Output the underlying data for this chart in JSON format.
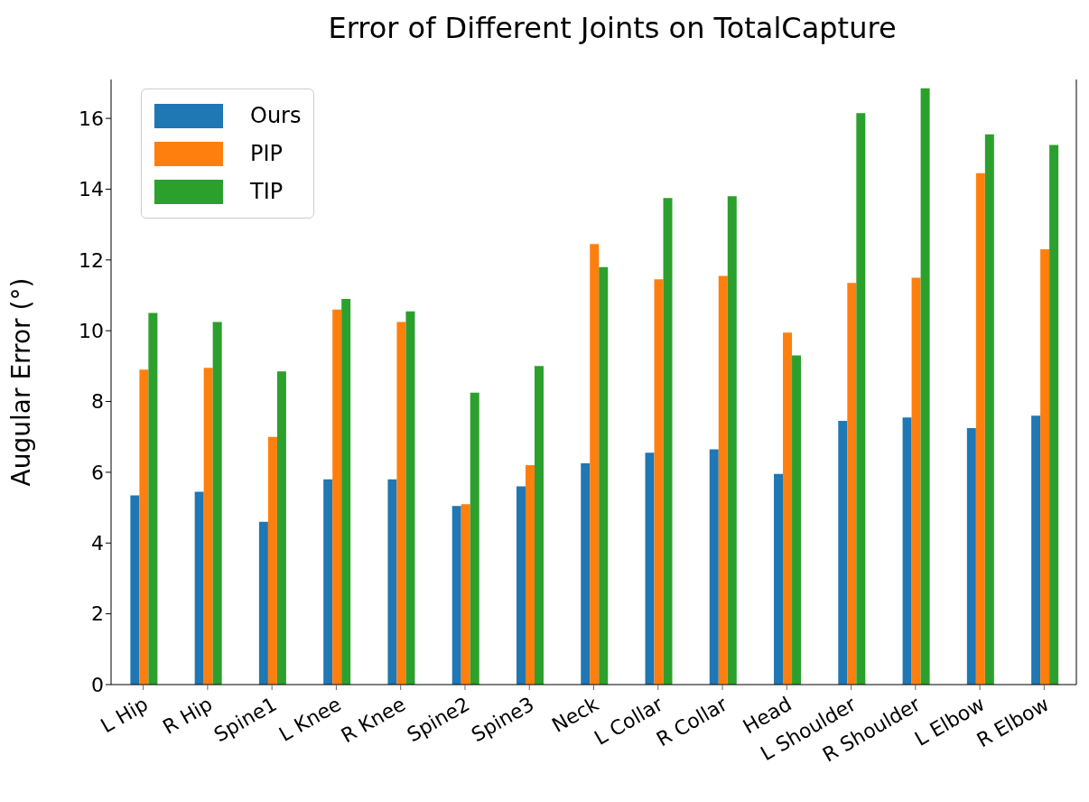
{
  "chart_data": {
    "type": "bar",
    "title": "Error of Different Joints on TotalCapture",
    "ylabel": "Augular Error  (°)",
    "categories": [
      "L Hip",
      "R Hip",
      "Spine1",
      "L Knee",
      "R Knee",
      "Spine2",
      "Spine3",
      "Neck",
      "L Collar",
      "R Collar",
      "Head",
      "L Shoulder",
      "R Shoulder",
      "L Elbow",
      "R Elbow"
    ],
    "series": [
      {
        "name": "Ours",
        "color": "#1f77b4",
        "values": [
          5.35,
          5.45,
          4.6,
          5.8,
          5.8,
          5.05,
          5.6,
          6.25,
          6.55,
          6.65,
          5.95,
          7.45,
          7.55,
          7.25,
          7.6
        ]
      },
      {
        "name": "PIP",
        "color": "#ff7f0e",
        "values": [
          8.9,
          8.95,
          7.0,
          10.6,
          10.25,
          5.1,
          6.2,
          12.45,
          11.45,
          11.55,
          9.95,
          11.35,
          11.5,
          14.45,
          12.3
        ]
      },
      {
        "name": "TIP",
        "color": "#2ca02c",
        "values": [
          10.5,
          10.25,
          8.85,
          10.9,
          10.55,
          8.25,
          9.0,
          11.8,
          13.75,
          13.8,
          9.3,
          16.15,
          16.85,
          15.55,
          15.25
        ]
      }
    ],
    "ylim": [
      0,
      17.1
    ],
    "yticks": [
      0,
      2,
      4,
      6,
      8,
      10,
      12,
      14,
      16
    ],
    "grid": false,
    "legend": "top left"
  }
}
